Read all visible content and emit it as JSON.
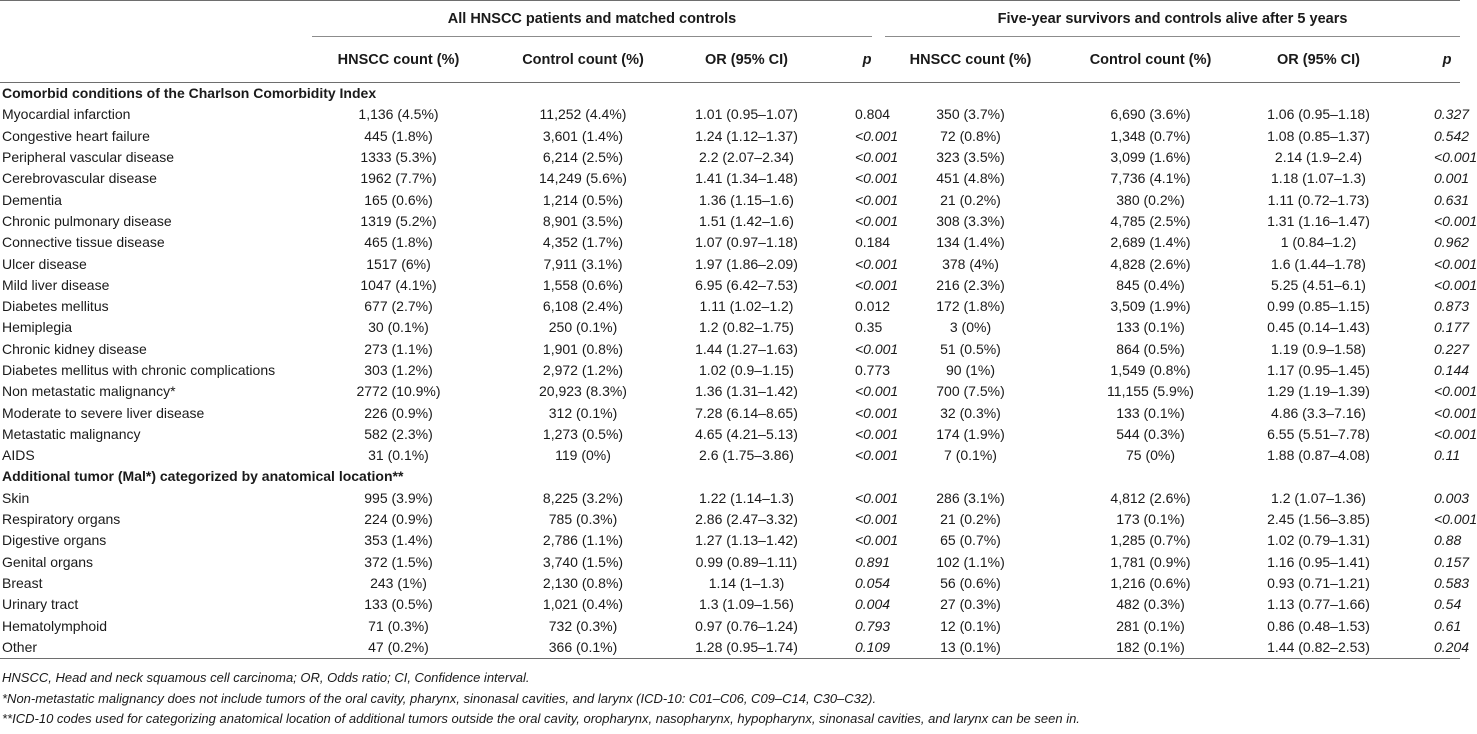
{
  "table": {
    "group_headers": {
      "left": "All HNSCC patients and matched controls",
      "right": "Five-year survivors and controls alive after 5 years"
    },
    "columns": [
      "HNSCC count (%)",
      "Control count (%)",
      "OR (95% CI)",
      "p",
      "HNSCC count (%)",
      "Control count (%)",
      "OR (95% CI)",
      "p"
    ],
    "sections": [
      {
        "title": "Comorbid conditions of the Charlson Comorbidity Index",
        "rows": [
          {
            "label": "Myocardial infarction",
            "cells": [
              "1,136 (4.5%)",
              "11,252 (4.4%)",
              "1.01 (0.95–1.07)",
              "0.804",
              "350 (3.7%)",
              "6,690 (3.6%)",
              "1.06 (0.95–1.18)",
              "0.327"
            ]
          },
          {
            "label": "Congestive heart failure",
            "cells": [
              "445 (1.8%)",
              "3,601 (1.4%)",
              "1.24 (1.12–1.37)",
              "<0.001",
              "72 (0.8%)",
              "1,348 (0.7%)",
              "1.08 (0.85–1.37)",
              "0.542"
            ]
          },
          {
            "label": "Peripheral vascular disease",
            "cells": [
              "1333 (5.3%)",
              "6,214 (2.5%)",
              "2.2 (2.07–2.34)",
              "<0.001",
              "323 (3.5%)",
              "3,099 (1.6%)",
              "2.14 (1.9–2.4)",
              "<0.001"
            ]
          },
          {
            "label": "Cerebrovascular disease",
            "cells": [
              "1962 (7.7%)",
              "14,249 (5.6%)",
              "1.41 (1.34–1.48)",
              "<0.001",
              "451 (4.8%)",
              "7,736 (4.1%)",
              "1.18 (1.07–1.3)",
              "0.001"
            ]
          },
          {
            "label": "Dementia",
            "cells": [
              "165 (0.6%)",
              "1,214 (0.5%)",
              "1.36 (1.15–1.6)",
              "<0.001",
              "21 (0.2%)",
              "380 (0.2%)",
              "1.11 (0.72–1.73)",
              "0.631"
            ]
          },
          {
            "label": "Chronic pulmonary disease",
            "cells": [
              "1319 (5.2%)",
              "8,901 (3.5%)",
              "1.51 (1.42–1.6)",
              "<0.001",
              "308 (3.3%)",
              "4,785 (2.5%)",
              "1.31 (1.16–1.47)",
              "<0.001"
            ]
          },
          {
            "label": "Connective tissue disease",
            "cells": [
              "465 (1.8%)",
              "4,352 (1.7%)",
              "1.07 (0.97–1.18)",
              "0.184",
              "134 (1.4%)",
              "2,689 (1.4%)",
              "1 (0.84–1.2)",
              "0.962"
            ]
          },
          {
            "label": "Ulcer disease",
            "cells": [
              "1517 (6%)",
              "7,911 (3.1%)",
              "1.97 (1.86–2.09)",
              "<0.001",
              "378 (4%)",
              "4,828 (2.6%)",
              "1.6 (1.44–1.78)",
              "<0.001"
            ]
          },
          {
            "label": "Mild liver disease",
            "cells": [
              "1047 (4.1%)",
              "1,558 (0.6%)",
              "6.95 (6.42–7.53)",
              "<0.001",
              "216 (2.3%)",
              "845 (0.4%)",
              "5.25 (4.51–6.1)",
              "<0.001"
            ]
          },
          {
            "label": "Diabetes mellitus",
            "cells": [
              "677 (2.7%)",
              "6,108 (2.4%)",
              "1.11 (1.02–1.2)",
              "0.012",
              "172 (1.8%)",
              "3,509 (1.9%)",
              "0.99 (0.85–1.15)",
              "0.873"
            ]
          },
          {
            "label": "Hemiplegia",
            "cells": [
              "30 (0.1%)",
              "250 (0.1%)",
              "1.2 (0.82–1.75)",
              "0.35",
              "3 (0%)",
              "133 (0.1%)",
              "0.45 (0.14–1.43)",
              "0.177"
            ]
          },
          {
            "label": "Chronic kidney disease",
            "cells": [
              "273 (1.1%)",
              "1,901 (0.8%)",
              "1.44 (1.27–1.63)",
              "<0.001",
              "51 (0.5%)",
              "864 (0.5%)",
              "1.19 (0.9–1.58)",
              "0.227"
            ]
          },
          {
            "label": "Diabetes mellitus with chronic complications",
            "cells": [
              "303 (1.2%)",
              "2,972 (1.2%)",
              "1.02 (0.9–1.15)",
              "0.773",
              "90 (1%)",
              "1,549 (0.8%)",
              "1.17 (0.95–1.45)",
              "0.144"
            ]
          },
          {
            "label": "Non metastatic malignancy*",
            "cells": [
              "2772 (10.9%)",
              "20,923 (8.3%)",
              "1.36 (1.31–1.42)",
              "<0.001",
              "700 (7.5%)",
              "11,155 (5.9%)",
              "1.29 (1.19–1.39)",
              "<0.001"
            ]
          },
          {
            "label": "Moderate to severe liver disease",
            "cells": [
              "226 (0.9%)",
              "312 (0.1%)",
              "7.28 (6.14–8.65)",
              "<0.001",
              "32 (0.3%)",
              "133 (0.1%)",
              "4.86 (3.3–7.16)",
              "<0.001"
            ]
          },
          {
            "label": "Metastatic malignancy",
            "cells": [
              "582 (2.3%)",
              "1,273 (0.5%)",
              "4.65 (4.21–5.13)",
              "<0.001",
              "174 (1.9%)",
              "544 (0.3%)",
              "6.55 (5.51–7.78)",
              "<0.001"
            ]
          },
          {
            "label": "AIDS",
            "cells": [
              "31 (0.1%)",
              "119 (0%)",
              "2.6 (1.75–3.86)",
              "<0.001",
              "7 (0.1%)",
              "75 (0%)",
              "1.88 (0.87–4.08)",
              "0.11"
            ]
          }
        ]
      },
      {
        "title": "Additional tumor (Mal*) categorized by anatomical location**",
        "rows": [
          {
            "label": "Skin",
            "cells": [
              "995 (3.9%)",
              "8,225 (3.2%)",
              "1.22 (1.14–1.3)",
              "<0.001",
              "286 (3.1%)",
              "4,812 (2.6%)",
              "1.2 (1.07–1.36)",
              "0.003"
            ]
          },
          {
            "label": "Respiratory organs",
            "cells": [
              "224 (0.9%)",
              "785 (0.3%)",
              "2.86 (2.47–3.32)",
              "<0.001",
              "21 (0.2%)",
              "173 (0.1%)",
              "2.45 (1.56–3.85)",
              "<0.001"
            ]
          },
          {
            "label": "Digestive organs",
            "cells": [
              "353 (1.4%)",
              "2,786 (1.1%)",
              "1.27 (1.13–1.42)",
              "<0.001",
              "65 (0.7%)",
              "1,285 (0.7%)",
              "1.02 (0.79–1.31)",
              "0.88"
            ]
          },
          {
            "label": "Genital organs",
            "cells": [
              "372 (1.5%)",
              "3,740 (1.5%)",
              "0.99 (0.89–1.11)",
              "0.891",
              "102 (1.1%)",
              "1,781 (0.9%)",
              "1.16 (0.95–1.41)",
              "0.157"
            ]
          },
          {
            "label": "Breast",
            "cells": [
              "243 (1%)",
              "2,130 (0.8%)",
              "1.14 (1–1.3)",
              "0.054",
              "56 (0.6%)",
              "1,216 (0.6%)",
              "0.93 (0.71–1.21)",
              "0.583"
            ]
          },
          {
            "label": "Urinary tract",
            "cells": [
              "133 (0.5%)",
              "1,021 (0.4%)",
              "1.3 (1.09–1.56)",
              "0.004",
              "27 (0.3%)",
              "482 (0.3%)",
              "1.13 (0.77–1.66)",
              "0.54"
            ]
          },
          {
            "label": "Hematolymphoid",
            "cells": [
              "71 (0.3%)",
              "732 (0.3%)",
              "0.97 (0.76–1.24)",
              "0.793",
              "12 (0.1%)",
              "281 (0.1%)",
              "0.86 (0.48–1.53)",
              "0.61"
            ]
          },
          {
            "label": "Other",
            "cells": [
              "47 (0.2%)",
              "366 (0.1%)",
              "1.28 (0.95–1.74)",
              "0.109",
              "13 (0.1%)",
              "182 (0.1%)",
              "1.44 (0.82–2.53)",
              "0.204"
            ]
          }
        ]
      }
    ],
    "footnotes": [
      "HNSCC, Head and neck squamous cell carcinoma; OR, Odds ratio; CI, Confidence interval.",
      "*Non-metastatic malignancy does not include tumors of the oral cavity, pharynx, sinonasal cavities, and larynx (ICD-10: C01–C06, C09–C14, C30–C32).",
      "**ICD-10 codes used for categorizing anatomical location of additional tumors outside the oral cavity, oropharynx, nasopharynx, hypopharynx, sinonasal cavities, and larynx can be seen in."
    ]
  }
}
